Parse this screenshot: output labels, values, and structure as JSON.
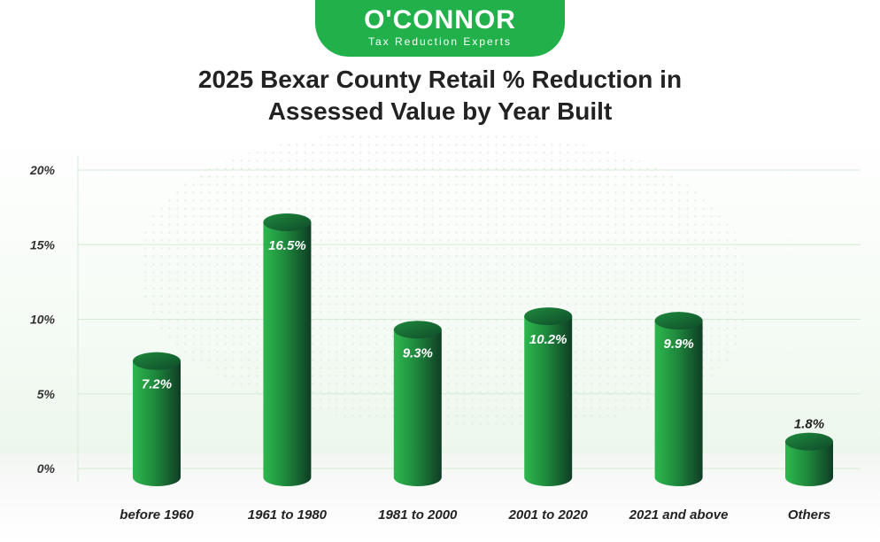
{
  "logo": {
    "name": "O'CONNOR",
    "tagline": "Tax Reduction Experts"
  },
  "title_line1": "2025 Bexar County Retail % Reduction in",
  "title_line2": "Assessed Value by Year Built",
  "colors": {
    "bar_light": "#2db84e",
    "bar_dark": "#0f3d25",
    "bar_top": "#1c7a3a",
    "logo_bg": "#22b04b",
    "grid": "#d7ead7"
  },
  "chart_data": {
    "type": "bar",
    "title": "2025 Bexar County Retail % Reduction in Assessed Value by Year Built",
    "categories": [
      "before 1960",
      "1961 to 1980",
      "1981 to 2000",
      "2001 to 2020",
      "2021 and above",
      "Others"
    ],
    "values": [
      7.2,
      16.5,
      9.3,
      10.2,
      9.9,
      1.8
    ],
    "value_labels": [
      "7.2%",
      "16.5%",
      "9.3%",
      "10.2%",
      "9.9%",
      "1.8%"
    ],
    "yticks": [
      "0%",
      "5%",
      "10%",
      "15%",
      "20%"
    ],
    "ytick_values": [
      0,
      5,
      10,
      15,
      20
    ],
    "ylim": [
      0,
      20
    ],
    "xlabel": "",
    "ylabel": "",
    "grid": true
  }
}
